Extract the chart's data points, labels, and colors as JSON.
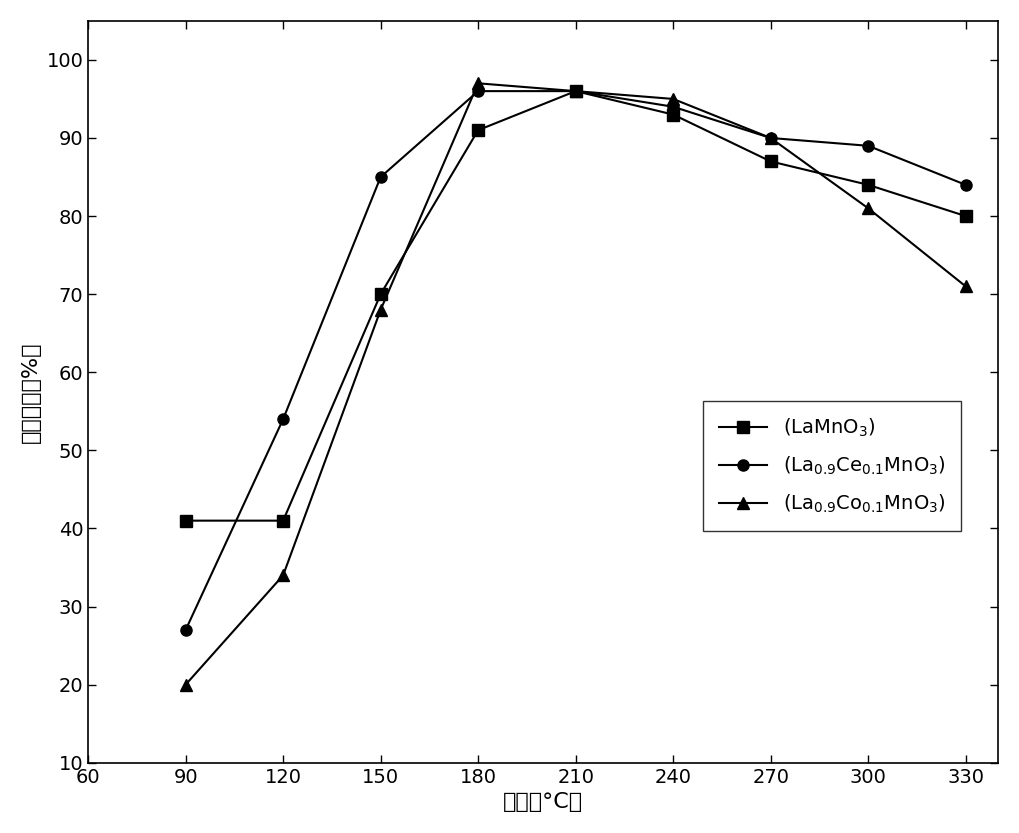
{
  "x": [
    90,
    120,
    150,
    180,
    210,
    240,
    270,
    300,
    330
  ],
  "series1_y": [
    41,
    41,
    70,
    91,
    96,
    93,
    87,
    84,
    80
  ],
  "series2_y": [
    27,
    54,
    85,
    96,
    96,
    94,
    90,
    89,
    84
  ],
  "series3_y": [
    20,
    34,
    68,
    97,
    96,
    95,
    90,
    81,
    71
  ],
  "series1_label": "(LaMnO$_3$)",
  "series2_label": "(La$_{0.9}$Ce$_{0.1}$MnO$_3$)",
  "series3_label": "(La$_{0.9}$Co$_{0.1}$MnO$_3$)",
  "xlabel": "温度（°C）",
  "ylabel": "脱硕效率（%）",
  "xlim": [
    60,
    340
  ],
  "ylim": [
    10,
    105
  ],
  "xticks": [
    60,
    90,
    120,
    150,
    180,
    210,
    240,
    270,
    300,
    330
  ],
  "yticks": [
    10,
    20,
    30,
    40,
    50,
    60,
    70,
    80,
    90,
    100
  ],
  "line_color": "#000000",
  "marker_square": "s",
  "marker_circle": "o",
  "marker_triangle": "^",
  "linewidth": 1.5,
  "markersize": 8,
  "legend_fontsize": 14,
  "axis_fontsize": 16,
  "tick_fontsize": 14
}
